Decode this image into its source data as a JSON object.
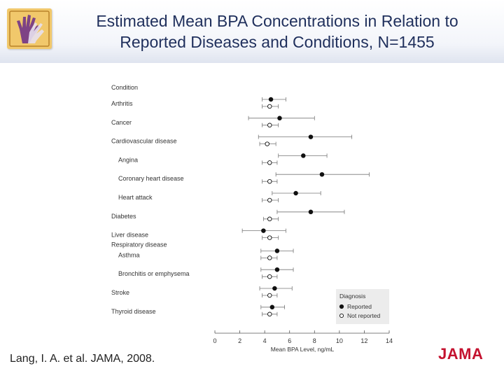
{
  "header": {
    "title_line1": "Estimated Mean BPA Concentrations in Relation to",
    "title_line2": "Reported Diseases and Conditions, N=1455"
  },
  "logo_icon": "hand-icon",
  "citation": "Lang, I. A. et al. JAMA, 2008.",
  "publisher": "JAMA",
  "colors": {
    "title": "#1f2f5c",
    "brand": "#c4122f",
    "logo": "#f1c86b"
  },
  "chart_data": {
    "type": "scatter",
    "subtype": "forest-plot",
    "xlabel": "Mean BPA Level, ng/mL",
    "xlim": [
      0,
      14
    ],
    "xticks": [
      0,
      2,
      4,
      6,
      8,
      10,
      12,
      14
    ],
    "row_header": "Condition",
    "legend": {
      "title": "Diagnosis",
      "placement": "bottom-right",
      "items": [
        "Reported",
        "Not reported"
      ]
    },
    "series": [
      {
        "name": "Reported"
      },
      {
        "name": "Not reported"
      }
    ],
    "rows": [
      {
        "label": "Arthritis",
        "indent": false,
        "reported": {
          "mean": 4.5,
          "lo": 3.8,
          "hi": 5.7
        },
        "not_reported": {
          "mean": 4.4,
          "lo": 3.8,
          "hi": 5.1
        }
      },
      {
        "label": "Cancer",
        "indent": false,
        "reported": {
          "mean": 5.2,
          "lo": 2.7,
          "hi": 8.0
        },
        "not_reported": {
          "mean": 4.4,
          "lo": 3.8,
          "hi": 5.1
        }
      },
      {
        "label": "Cardiovascular disease",
        "indent": false,
        "reported": {
          "mean": 7.7,
          "lo": 3.5,
          "hi": 11.0
        },
        "not_reported": {
          "mean": 4.2,
          "lo": 3.6,
          "hi": 4.9
        }
      },
      {
        "label": "Angina",
        "indent": true,
        "reported": {
          "mean": 7.1,
          "lo": 5.1,
          "hi": 9.0
        },
        "not_reported": {
          "mean": 4.4,
          "lo": 3.8,
          "hi": 5.0
        }
      },
      {
        "label": "Coronary heart disease",
        "indent": true,
        "reported": {
          "mean": 8.6,
          "lo": 4.9,
          "hi": 12.4
        },
        "not_reported": {
          "mean": 4.4,
          "lo": 3.8,
          "hi": 5.0
        }
      },
      {
        "label": "Heart attack",
        "indent": true,
        "reported": {
          "mean": 6.5,
          "lo": 4.6,
          "hi": 8.5
        },
        "not_reported": {
          "mean": 4.4,
          "lo": 3.8,
          "hi": 5.1
        }
      },
      {
        "label": "Diabetes",
        "indent": false,
        "reported": {
          "mean": 7.7,
          "lo": 5.0,
          "hi": 10.4
        },
        "not_reported": {
          "mean": 4.4,
          "lo": 3.9,
          "hi": 5.1
        }
      },
      {
        "label": "Liver disease",
        "indent": false,
        "reported": {
          "mean": 3.9,
          "lo": 2.2,
          "hi": 5.7
        },
        "not_reported": {
          "mean": 4.4,
          "lo": 3.8,
          "hi": 5.1
        }
      },
      {
        "label": "Respiratory disease",
        "indent": false,
        "header": true
      },
      {
        "label": "Asthma",
        "indent": true,
        "reported": {
          "mean": 5.0,
          "lo": 3.7,
          "hi": 6.3
        },
        "not_reported": {
          "mean": 4.4,
          "lo": 3.7,
          "hi": 5.0
        }
      },
      {
        "label": "Bronchitis or emphysema",
        "indent": true,
        "reported": {
          "mean": 5.0,
          "lo": 3.7,
          "hi": 6.3
        },
        "not_reported": {
          "mean": 4.4,
          "lo": 3.8,
          "hi": 5.0
        }
      },
      {
        "label": "Stroke",
        "indent": false,
        "reported": {
          "mean": 4.8,
          "lo": 3.6,
          "hi": 6.2
        },
        "not_reported": {
          "mean": 4.4,
          "lo": 3.8,
          "hi": 5.0
        }
      },
      {
        "label": "Thyroid disease",
        "indent": false,
        "reported": {
          "mean": 4.6,
          "lo": 3.7,
          "hi": 5.6
        },
        "not_reported": {
          "mean": 4.4,
          "lo": 3.8,
          "hi": 5.0
        }
      }
    ]
  }
}
